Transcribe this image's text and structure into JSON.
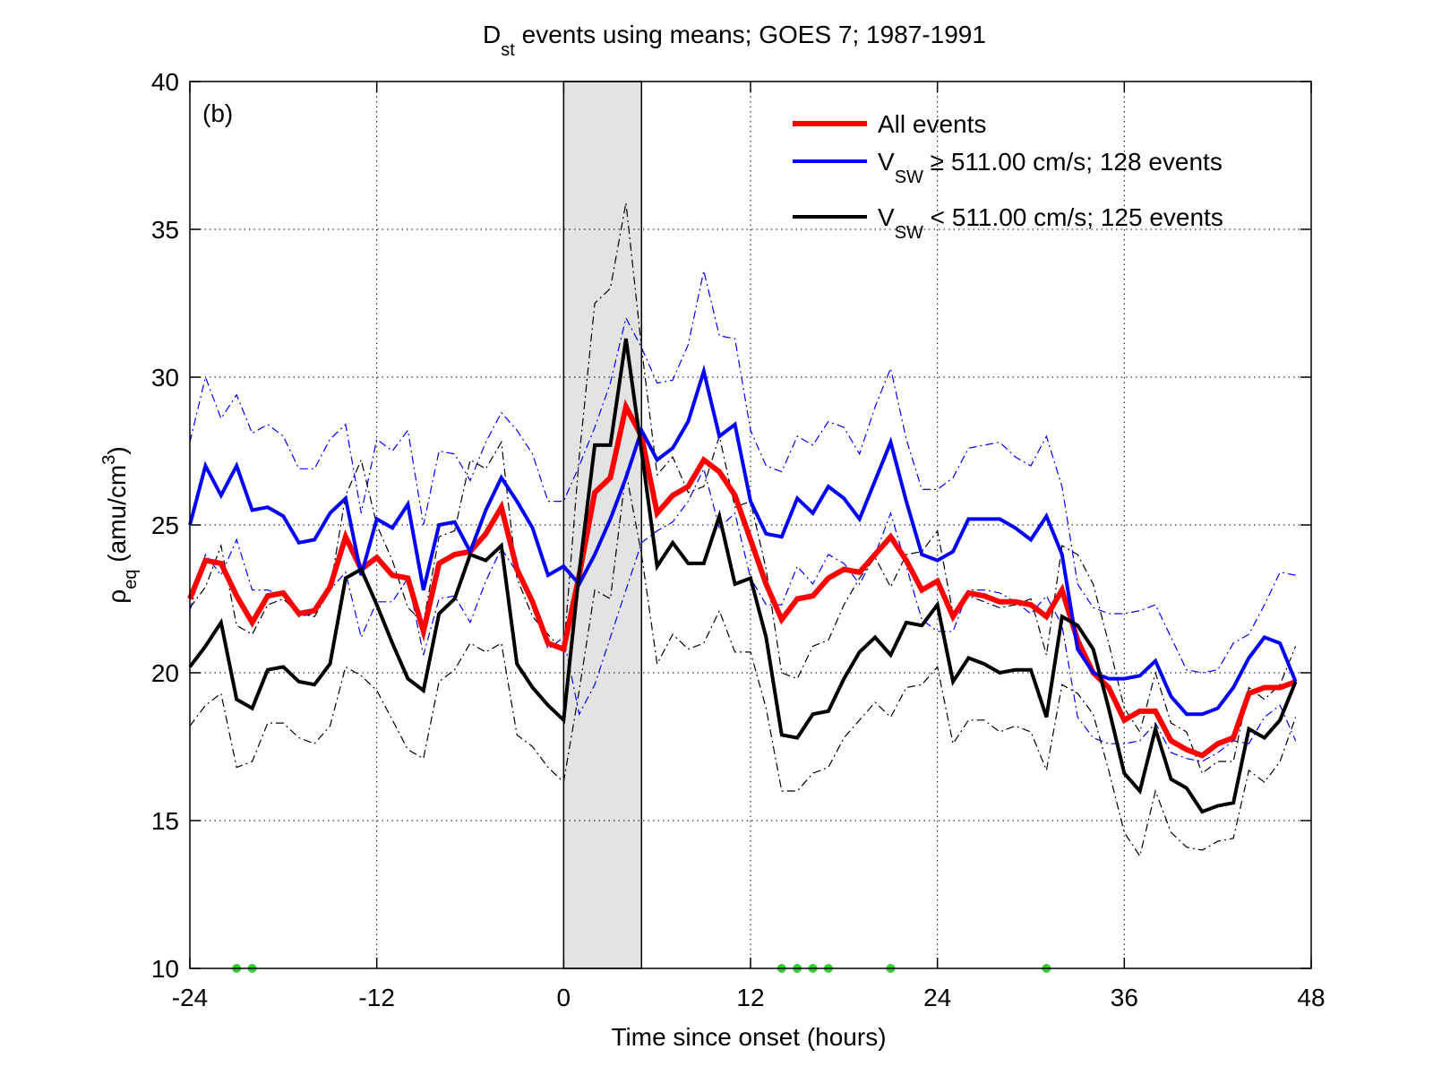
{
  "chart_data": {
    "type": "line",
    "title": {
      "main": "D",
      "sub": "st",
      "rest": " events using means; GOES 7; 1987-1991"
    },
    "xlabel": "Time since onset (hours)",
    "ylabel": {
      "main": "ρ",
      "sub": "eq",
      "rest": " (amu/cm",
      "sup": "3",
      "end": ")"
    },
    "annotation": "(b)",
    "xlim": [
      -24,
      48
    ],
    "xticks": [
      -24,
      -12,
      0,
      12,
      24,
      36,
      48
    ],
    "ylim": [
      10,
      40
    ],
    "yticks": [
      10,
      15,
      20,
      25,
      30,
      35,
      40
    ],
    "grid": true,
    "shade": {
      "x": [
        0,
        5
      ],
      "color": "#e3e3e3"
    },
    "markers": {
      "color": "#33cc33",
      "x": [
        -21,
        -20,
        14,
        15,
        16,
        17,
        21,
        31
      ]
    },
    "x": [
      -24,
      -23,
      -22,
      -21,
      -20,
      -19,
      -18,
      -17,
      -16,
      -15,
      -14,
      -13,
      -12,
      -11,
      -10,
      -9,
      -8,
      -7,
      -6,
      -5,
      -4,
      -3,
      -2,
      -1,
      0,
      1,
      2,
      3,
      4,
      5,
      6,
      7,
      8,
      9,
      10,
      11,
      12,
      13,
      14,
      15,
      16,
      17,
      18,
      19,
      20,
      21,
      22,
      23,
      24,
      25,
      26,
      27,
      28,
      29,
      30,
      31,
      32,
      33,
      34,
      35,
      36,
      37,
      38,
      39,
      40,
      41,
      42,
      43,
      44,
      45,
      46,
      47
    ],
    "series": [
      {
        "name": "All events",
        "color": "#ff0000",
        "width": 6,
        "values": [
          22.5,
          23.8,
          23.7,
          22.6,
          21.7,
          22.6,
          22.7,
          22.0,
          22.1,
          22.9,
          24.6,
          23.5,
          23.9,
          23.3,
          23.2,
          21.4,
          23.7,
          24.0,
          24.1,
          24.7,
          25.6,
          23.5,
          22.4,
          21.0,
          20.8,
          23.3,
          26.1,
          26.6,
          29.0,
          28.0,
          25.4,
          26.0,
          26.3,
          27.2,
          26.8,
          26.0,
          24.5,
          23.0,
          21.8,
          22.5,
          22.6,
          23.2,
          23.5,
          23.4,
          24.0,
          24.6,
          23.8,
          22.8,
          23.1,
          21.9,
          22.7,
          22.6,
          22.4,
          22.4,
          22.3,
          21.9,
          22.8,
          21.1,
          20.0,
          19.5,
          18.4,
          18.7,
          18.7,
          17.7,
          17.4,
          17.2,
          17.6,
          17.8,
          19.3,
          19.5,
          19.5,
          19.7
        ]
      },
      {
        "name": "V",
        "name_sub": "SW",
        "name_rest": " ≥ 511.00 cm/s; 128 events",
        "color": "#0000ff",
        "width": 4,
        "values": [
          25.0,
          27.0,
          26.0,
          27.0,
          25.5,
          25.6,
          25.3,
          24.4,
          24.5,
          25.4,
          25.9,
          23.3,
          25.2,
          24.9,
          25.7,
          22.8,
          25.0,
          25.1,
          24.1,
          25.5,
          26.6,
          25.8,
          24.9,
          23.3,
          23.6,
          23.0,
          24.0,
          25.2,
          26.6,
          28.2,
          27.2,
          27.6,
          28.5,
          30.2,
          28.0,
          28.4,
          25.8,
          24.7,
          24.6,
          25.9,
          25.4,
          26.3,
          25.9,
          25.2,
          26.5,
          27.8,
          25.8,
          24.0,
          23.8,
          24.1,
          25.2,
          25.2,
          25.2,
          24.9,
          24.5,
          25.3,
          24.0,
          20.8,
          20.0,
          19.8,
          19.8,
          19.9,
          20.4,
          19.2,
          18.6,
          18.6,
          18.8,
          19.5,
          20.5,
          21.2,
          21.0,
          19.7
        ]
      },
      {
        "name": "V",
        "name_sub": "SW",
        "name_rest": " < 511.00 cm/s; 125 events",
        "color": "#000000",
        "width": 4,
        "values": [
          20.2,
          20.9,
          21.7,
          19.1,
          18.8,
          20.1,
          20.2,
          19.7,
          19.6,
          20.3,
          23.2,
          23.5,
          22.3,
          21.0,
          19.8,
          19.4,
          22.0,
          22.5,
          24.0,
          23.8,
          24.3,
          20.3,
          19.5,
          18.9,
          18.4,
          23.4,
          27.7,
          27.7,
          31.3,
          27.5,
          23.6,
          24.4,
          23.7,
          23.7,
          25.3,
          23.0,
          23.2,
          21.2,
          17.9,
          17.8,
          18.6,
          18.7,
          19.8,
          20.7,
          21.2,
          20.6,
          21.7,
          21.6,
          22.3,
          19.7,
          20.5,
          20.3,
          20.0,
          20.1,
          20.1,
          18.5,
          21.9,
          21.6,
          20.8,
          18.8,
          16.6,
          16.0,
          18.1,
          16.4,
          16.1,
          15.3,
          15.5,
          15.6,
          18.1,
          17.8,
          18.4,
          19.7
        ]
      }
    ],
    "envelopes": [
      {
        "color": "#0000ff",
        "values": [
          27.8,
          30.0,
          28.6,
          29.4,
          28.1,
          28.4,
          28.0,
          26.9,
          26.9,
          27.9,
          28.4,
          25.4,
          27.9,
          27.5,
          28.2,
          25.0,
          27.5,
          27.4,
          26.5,
          27.8,
          28.8,
          28.2,
          27.4,
          25.8,
          25.8,
          27.0,
          28.3,
          29.8,
          32.0,
          31.0,
          29.8,
          29.9,
          31.1,
          33.6,
          31.4,
          31.3,
          28.2,
          27.0,
          26.8,
          28.0,
          27.7,
          28.5,
          28.3,
          27.4,
          29.0,
          30.3,
          27.9,
          26.2,
          26.2,
          26.6,
          27.6,
          27.7,
          27.8,
          27.3,
          27.0,
          28.0,
          26.3,
          23.0,
          22.2,
          22.0,
          22.0,
          22.1,
          22.3,
          21.2,
          20.1,
          20.0,
          20.1,
          21.0,
          21.3,
          22.3,
          23.4,
          23.3
        ]
      },
      {
        "color": "#0000ff",
        "values": [
          22.1,
          24.0,
          23.3,
          24.5,
          22.8,
          22.8,
          22.6,
          21.9,
          22.0,
          22.8,
          23.4,
          21.2,
          22.4,
          22.4,
          23.2,
          20.6,
          22.5,
          22.6,
          21.7,
          23.1,
          24.2,
          23.4,
          22.4,
          20.8,
          21.2,
          18.6,
          19.6,
          21.2,
          22.8,
          24.4,
          24.8,
          25.1,
          25.8,
          26.9,
          24.9,
          25.4,
          23.2,
          22.3,
          22.3,
          23.6,
          23.0,
          24.0,
          23.7,
          23.0,
          24.0,
          25.4,
          23.6,
          21.8,
          21.4,
          21.4,
          22.8,
          22.8,
          22.7,
          22.4,
          22.0,
          22.6,
          21.6,
          18.5,
          17.8,
          17.6,
          17.6,
          17.7,
          18.3,
          17.3,
          17.1,
          17.0,
          17.3,
          17.7,
          17.6,
          18.5,
          18.9,
          17.7
        ]
      },
      {
        "color": "#000000",
        "values": [
          22.2,
          22.9,
          24.3,
          21.6,
          21.3,
          22.3,
          22.5,
          22.0,
          21.9,
          22.8,
          26.0,
          27.2,
          25.0,
          23.8,
          22.2,
          21.7,
          24.6,
          24.8,
          27.2,
          26.9,
          27.8,
          23.2,
          21.9,
          21.3,
          20.7,
          27.3,
          32.5,
          33.0,
          35.9,
          31.0,
          26.7,
          27.3,
          26.1,
          26.3,
          28.0,
          25.6,
          25.8,
          23.5,
          20.0,
          19.8,
          20.9,
          21.1,
          22.3,
          23.2,
          23.9,
          22.9,
          24.0,
          24.1,
          24.8,
          22.0,
          22.6,
          22.4,
          22.2,
          22.3,
          22.5,
          20.6,
          24.3,
          24.0,
          23.0,
          21.0,
          18.8,
          18.0,
          20.0,
          18.3,
          18.0,
          16.6,
          17.0,
          17.0,
          19.5,
          19.1,
          19.6,
          20.9
        ]
      },
      {
        "color": "#000000",
        "values": [
          18.2,
          18.9,
          19.3,
          16.8,
          17.0,
          18.3,
          18.3,
          17.8,
          17.6,
          18.2,
          20.2,
          19.9,
          19.4,
          18.4,
          17.4,
          17.1,
          19.7,
          20.1,
          21.0,
          20.7,
          21.0,
          17.9,
          17.5,
          16.8,
          16.3,
          19.4,
          22.8,
          22.5,
          26.8,
          24.0,
          20.3,
          21.3,
          20.8,
          21.0,
          22.1,
          20.7,
          20.7,
          18.8,
          16.0,
          16.0,
          16.6,
          16.8,
          17.8,
          18.4,
          19.0,
          18.5,
          19.5,
          19.6,
          20.2,
          17.6,
          18.4,
          18.4,
          18.0,
          18.2,
          18.0,
          16.7,
          19.6,
          19.3,
          18.6,
          16.7,
          14.6,
          13.8,
          16.0,
          14.6,
          14.1,
          14.0,
          14.3,
          14.4,
          16.7,
          16.3,
          17.0,
          18.5
        ]
      }
    ]
  }
}
